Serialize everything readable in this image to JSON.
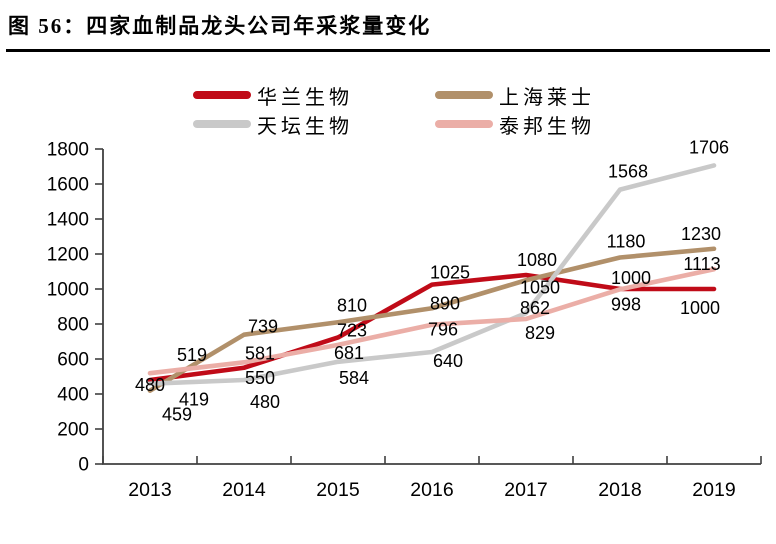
{
  "figure": {
    "title": "图 56：四家血制品龙头公司年采浆量变化"
  },
  "chart_data": {
    "type": "line",
    "title": "图 56：四家血制品龙头公司年采浆量变化",
    "categories": [
      "2013",
      "2014",
      "2015",
      "2016",
      "2017",
      "2018",
      "2019"
    ],
    "ylim": [
      0,
      1800
    ],
    "yticks": [
      0,
      200,
      400,
      600,
      800,
      1000,
      1200,
      1400,
      1600,
      1800
    ],
    "grid": false,
    "legend_position": "top",
    "legend_columns": 2,
    "axis_color": "#404040",
    "text_color": "#000000",
    "series": [
      {
        "name": "华兰生物",
        "color": "#c00b18",
        "values": [
          480,
          550,
          723,
          1025,
          1080,
          1000,
          1000
        ],
        "label_offsets": [
          [
            0,
            5
          ],
          [
            16,
            10
          ],
          [
            14,
            -7
          ],
          [
            18,
            -12
          ],
          [
            11,
            -15
          ],
          [
            11,
            -11
          ],
          [
            -14,
            19
          ]
        ]
      },
      {
        "name": "上海莱士",
        "color": "#b1906a",
        "values": [
          419,
          739,
          810,
          890,
          1050,
          1180,
          1230
        ],
        "label_offsets": [
          [
            44,
            9
          ],
          [
            19,
            -8
          ],
          [
            14,
            -17
          ],
          [
            13,
            -5
          ],
          [
            14,
            7
          ],
          [
            6,
            -16
          ],
          [
            -13,
            -15
          ]
        ]
      },
      {
        "name": "天坛生物",
        "color": "#c9c9c9",
        "values": [
          459,
          480,
          584,
          640,
          862,
          1568,
          1706
        ],
        "label_offsets": [
          [
            27,
            31
          ],
          [
            21,
            22
          ],
          [
            16,
            16
          ],
          [
            16,
            9
          ],
          [
            9,
            -5
          ],
          [
            8,
            -18
          ],
          [
            -5,
            -18
          ]
        ]
      },
      {
        "name": "泰邦生物",
        "color": "#ebaea7",
        "values": [
          519,
          581,
          681,
          796,
          829,
          998,
          1113
        ],
        "label_offsets": [
          [
            42,
            -18
          ],
          [
            16,
            -9
          ],
          [
            11,
            8
          ],
          [
            11,
            5
          ],
          [
            14,
            14
          ],
          [
            6,
            15
          ],
          [
            -12,
            -5
          ]
        ]
      }
    ]
  }
}
